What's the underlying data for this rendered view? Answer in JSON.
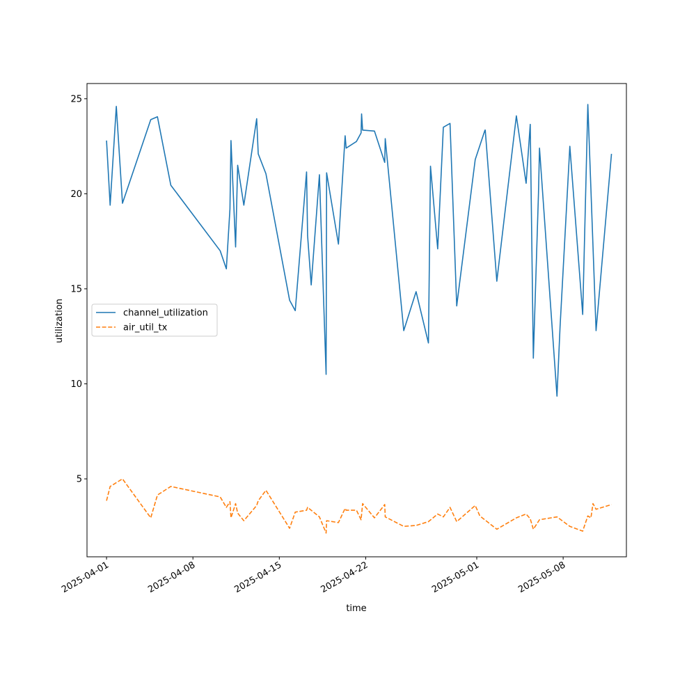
{
  "chart_data": {
    "type": "line",
    "xlabel": "time",
    "ylabel": "utilization",
    "xlim": [
      "2025-03-30T10:00",
      "2025-05-13T03:00"
    ],
    "ylim": [
      0.9,
      25.8
    ],
    "x_ticks": [
      "2025-04-01",
      "2025-04-08",
      "2025-04-15",
      "2025-04-22",
      "2025-05-01",
      "2025-05-08"
    ],
    "y_ticks": [
      5,
      10,
      15,
      20,
      25
    ],
    "grid": false,
    "legend_position": "center-left",
    "series": [
      {
        "name": "channel_utilization",
        "color": "#1f77b4",
        "style": "solid",
        "points": [
          [
            "2025-04-01T00:00",
            22.8
          ],
          [
            "2025-04-01T07:00",
            19.4
          ],
          [
            "2025-04-01T19:00",
            24.6
          ],
          [
            "2025-04-02T07:00",
            19.5
          ],
          [
            "2025-04-04T14:00",
            23.9
          ],
          [
            "2025-04-05T03:00",
            24.05
          ],
          [
            "2025-04-06T05:00",
            20.45
          ],
          [
            "2025-04-10T05:00",
            17.0
          ],
          [
            "2025-04-10T17:00",
            16.05
          ],
          [
            "2025-04-11T00:00",
            19.2
          ],
          [
            "2025-04-11T02:00",
            22.8
          ],
          [
            "2025-04-11T11:00",
            17.2
          ],
          [
            "2025-04-11T15:00",
            21.5
          ],
          [
            "2025-04-12T03:00",
            19.4
          ],
          [
            "2025-04-13T04:00",
            23.95
          ],
          [
            "2025-04-13T07:00",
            22.1
          ],
          [
            "2025-04-13T22:00",
            21.05
          ],
          [
            "2025-04-15T20:00",
            14.4
          ],
          [
            "2025-04-16T07:00",
            13.85
          ],
          [
            "2025-04-17T05:00",
            21.15
          ],
          [
            "2025-04-17T07:00",
            17.8
          ],
          [
            "2025-04-17T14:00",
            15.2
          ],
          [
            "2025-04-18T06:00",
            21.0
          ],
          [
            "2025-04-18T19:00",
            10.5
          ],
          [
            "2025-04-18T20:00",
            21.1
          ],
          [
            "2025-04-19T19:00",
            17.35
          ],
          [
            "2025-04-20T08:00",
            23.05
          ],
          [
            "2025-04-20T10:00",
            22.4
          ],
          [
            "2025-04-21T06:00",
            22.75
          ],
          [
            "2025-04-21T15:00",
            23.2
          ],
          [
            "2025-04-21T16:00",
            24.2
          ],
          [
            "2025-04-21T18:00",
            23.35
          ],
          [
            "2025-04-22T17:00",
            23.3
          ],
          [
            "2025-04-23T13:00",
            21.65
          ],
          [
            "2025-04-23T14:00",
            22.9
          ],
          [
            "2025-04-25T02:00",
            12.8
          ],
          [
            "2025-04-26T02:00",
            14.85
          ],
          [
            "2025-04-27T02:00",
            12.15
          ],
          [
            "2025-04-27T06:00",
            21.45
          ],
          [
            "2025-04-27T20:00",
            17.1
          ],
          [
            "2025-04-28T07:00",
            23.5
          ],
          [
            "2025-04-28T20:00",
            23.7
          ],
          [
            "2025-04-29T09:00",
            14.1
          ],
          [
            "2025-04-30T21:00",
            21.8
          ],
          [
            "2025-05-01T16:00",
            23.35
          ],
          [
            "2025-05-01T16:30",
            23.35
          ],
          [
            "2025-05-02T15:00",
            15.4
          ],
          [
            "2025-05-04T05:00",
            24.1
          ],
          [
            "2025-05-05T00:00",
            20.55
          ],
          [
            "2025-05-05T08:00",
            23.65
          ],
          [
            "2025-05-05T14:00",
            11.35
          ],
          [
            "2025-05-06T00:00",
            20.0
          ],
          [
            "2025-05-06T02:00",
            22.4
          ],
          [
            "2025-05-07T12:00",
            9.35
          ],
          [
            "2025-05-07T18:00",
            13.0
          ],
          [
            "2025-05-08T13:00",
            22.5
          ],
          [
            "2025-05-09T14:00",
            13.65
          ],
          [
            "2025-05-10T00:00",
            24.7
          ],
          [
            "2025-05-10T16:00",
            12.8
          ],
          [
            "2025-05-11T22:00",
            22.1
          ]
        ]
      },
      {
        "name": "air_util_tx",
        "color": "#ff7f0e",
        "style": "dashed",
        "points": [
          [
            "2025-04-01T00:00",
            3.85
          ],
          [
            "2025-04-01T07:00",
            4.6
          ],
          [
            "2025-04-02T07:00",
            5.0
          ],
          [
            "2025-04-04T14:00",
            2.95
          ],
          [
            "2025-04-05T03:00",
            4.15
          ],
          [
            "2025-04-06T05:00",
            4.6
          ],
          [
            "2025-04-10T05:00",
            4.05
          ],
          [
            "2025-04-10T17:00",
            3.5
          ],
          [
            "2025-04-11T00:00",
            3.8
          ],
          [
            "2025-04-11T02:00",
            2.95
          ],
          [
            "2025-04-11T11:00",
            3.7
          ],
          [
            "2025-04-11T15:00",
            3.2
          ],
          [
            "2025-04-12T03:00",
            2.8
          ],
          [
            "2025-04-13T04:00",
            3.6
          ],
          [
            "2025-04-13T07:00",
            3.85
          ],
          [
            "2025-04-13T22:00",
            4.4
          ],
          [
            "2025-04-15T20:00",
            2.4
          ],
          [
            "2025-04-16T07:00",
            3.25
          ],
          [
            "2025-04-17T05:00",
            3.35
          ],
          [
            "2025-04-17T07:00",
            3.5
          ],
          [
            "2025-04-18T06:00",
            3.0
          ],
          [
            "2025-04-18T19:00",
            2.15
          ],
          [
            "2025-04-18T20:00",
            2.8
          ],
          [
            "2025-04-19T19:00",
            2.7
          ],
          [
            "2025-04-20T08:00",
            3.45
          ],
          [
            "2025-04-20T10:00",
            3.35
          ],
          [
            "2025-04-21T06:00",
            3.35
          ],
          [
            "2025-04-21T15:00",
            2.85
          ],
          [
            "2025-04-21T18:00",
            3.7
          ],
          [
            "2025-04-22T17:00",
            2.95
          ],
          [
            "2025-04-23T13:00",
            3.65
          ],
          [
            "2025-04-23T14:00",
            3.0
          ],
          [
            "2025-04-25T02:00",
            2.5
          ],
          [
            "2025-04-26T02:00",
            2.55
          ],
          [
            "2025-04-27T02:00",
            2.75
          ],
          [
            "2025-04-27T20:00",
            3.15
          ],
          [
            "2025-04-28T07:00",
            3.0
          ],
          [
            "2025-04-28T20:00",
            3.5
          ],
          [
            "2025-04-29T09:00",
            2.75
          ],
          [
            "2025-04-30T21:00",
            3.6
          ],
          [
            "2025-05-01T06:00",
            3.05
          ],
          [
            "2025-05-02T15:00",
            2.35
          ],
          [
            "2025-05-04T05:00",
            2.95
          ],
          [
            "2025-05-05T00:00",
            3.15
          ],
          [
            "2025-05-05T08:00",
            2.9
          ],
          [
            "2025-05-05T14:00",
            2.35
          ],
          [
            "2025-05-06T02:00",
            2.85
          ],
          [
            "2025-05-07T12:00",
            3.0
          ],
          [
            "2025-05-08T13:00",
            2.5
          ],
          [
            "2025-05-09T14:00",
            2.25
          ],
          [
            "2025-05-10T00:00",
            3.05
          ],
          [
            "2025-05-10T06:00",
            2.95
          ],
          [
            "2025-05-10T10:00",
            3.7
          ],
          [
            "2025-05-10T16:00",
            3.4
          ],
          [
            "2025-05-11T22:00",
            3.65
          ]
        ]
      }
    ]
  }
}
